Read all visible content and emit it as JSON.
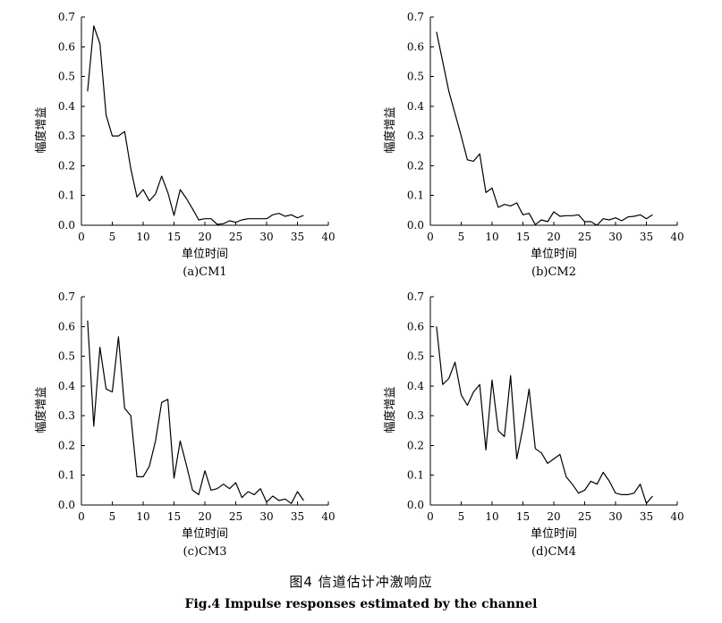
{
  "figure": {
    "caption_cn": "图4  信道估计冲激响应",
    "caption_en": "Fig.4   Impulse responses estimated by the channel"
  },
  "chart_data": [
    {
      "type": "line",
      "caption": "(a)CM1",
      "xlabel": "单位时间",
      "ylabel": "幅度增益",
      "xlim": [
        0,
        40
      ],
      "ylim": [
        0,
        0.7
      ],
      "xticks": [
        0,
        5,
        10,
        15,
        20,
        25,
        30,
        35,
        40
      ],
      "yticks": [
        0.0,
        0.1,
        0.2,
        0.3,
        0.4,
        0.5,
        0.6,
        0.7
      ],
      "grid": false,
      "x": [
        1,
        2,
        3,
        4,
        5,
        6,
        7,
        8,
        9,
        10,
        11,
        12,
        13,
        14,
        15,
        16,
        17,
        18,
        19,
        20,
        21,
        22,
        23,
        24,
        25,
        26,
        27,
        28,
        29,
        30,
        31,
        32,
        33,
        34,
        35,
        36
      ],
      "values": [
        0.45,
        0.67,
        0.61,
        0.37,
        0.3,
        0.3,
        0.315,
        0.19,
        0.095,
        0.12,
        0.082,
        0.105,
        0.165,
        0.11,
        0.033,
        0.12,
        0.09,
        0.055,
        0.018,
        0.022,
        0.022,
        0.003,
        0.005,
        0.015,
        0.01,
        0.018,
        0.022,
        0.022,
        0.022,
        0.022,
        0.035,
        0.04,
        0.03,
        0.035,
        0.025,
        0.033
      ]
    },
    {
      "type": "line",
      "caption": "(b)CM2",
      "xlabel": "单位时间",
      "ylabel": "幅度增益",
      "xlim": [
        0,
        40
      ],
      "ylim": [
        0,
        0.7
      ],
      "xticks": [
        0,
        5,
        10,
        15,
        20,
        25,
        30,
        35,
        40
      ],
      "yticks": [
        0.0,
        0.1,
        0.2,
        0.3,
        0.4,
        0.5,
        0.6,
        0.7
      ],
      "grid": false,
      "x": [
        1,
        2,
        3,
        4,
        5,
        6,
        7,
        8,
        9,
        10,
        11,
        12,
        13,
        14,
        15,
        16,
        17,
        18,
        19,
        20,
        21,
        22,
        23,
        24,
        25,
        26,
        27,
        28,
        29,
        30,
        31,
        32,
        33,
        34,
        35,
        36
      ],
      "values": [
        0.65,
        0.55,
        0.45,
        0.375,
        0.3,
        0.22,
        0.215,
        0.24,
        0.11,
        0.125,
        0.06,
        0.07,
        0.065,
        0.075,
        0.035,
        0.04,
        0.002,
        0.018,
        0.012,
        0.045,
        0.03,
        0.032,
        0.032,
        0.035,
        0.012,
        0.012,
        0.0,
        0.022,
        0.018,
        0.025,
        0.015,
        0.028,
        0.03,
        0.035,
        0.022,
        0.035
      ]
    },
    {
      "type": "line",
      "caption": "(c)CM3",
      "xlabel": "单位时间",
      "ylabel": "幅度增益",
      "xlim": [
        0,
        40
      ],
      "ylim": [
        0,
        0.7
      ],
      "xticks": [
        0,
        5,
        10,
        15,
        20,
        25,
        30,
        35,
        40
      ],
      "yticks": [
        0.0,
        0.1,
        0.2,
        0.3,
        0.4,
        0.5,
        0.6,
        0.7
      ],
      "grid": false,
      "x": [
        1,
        2,
        3,
        4,
        5,
        6,
        7,
        8,
        9,
        10,
        11,
        12,
        13,
        14,
        15,
        16,
        17,
        18,
        19,
        20,
        21,
        22,
        23,
        24,
        25,
        26,
        27,
        28,
        29,
        30,
        31,
        32,
        33,
        34,
        35,
        36
      ],
      "values": [
        0.62,
        0.265,
        0.53,
        0.39,
        0.38,
        0.565,
        0.325,
        0.3,
        0.095,
        0.095,
        0.13,
        0.215,
        0.345,
        0.355,
        0.09,
        0.215,
        0.135,
        0.05,
        0.035,
        0.115,
        0.05,
        0.055,
        0.07,
        0.055,
        0.075,
        0.025,
        0.045,
        0.035,
        0.055,
        0.01,
        0.03,
        0.015,
        0.02,
        0.005,
        0.045,
        0.015
      ]
    },
    {
      "type": "line",
      "caption": "(d)CM4",
      "xlabel": "单位时间",
      "ylabel": "幅度增益",
      "xlim": [
        0,
        40
      ],
      "ylim": [
        0,
        0.7
      ],
      "xticks": [
        0,
        5,
        10,
        15,
        20,
        25,
        30,
        35,
        40
      ],
      "yticks": [
        0.0,
        0.1,
        0.2,
        0.3,
        0.4,
        0.5,
        0.6,
        0.7
      ],
      "grid": false,
      "x": [
        1,
        2,
        3,
        4,
        5,
        6,
        7,
        8,
        9,
        10,
        11,
        12,
        13,
        14,
        15,
        16,
        17,
        18,
        19,
        20,
        21,
        22,
        23,
        24,
        25,
        26,
        27,
        28,
        29,
        30,
        31,
        32,
        33,
        34,
        35,
        36
      ],
      "values": [
        0.6,
        0.405,
        0.425,
        0.48,
        0.37,
        0.335,
        0.38,
        0.405,
        0.185,
        0.42,
        0.25,
        0.23,
        0.435,
        0.155,
        0.26,
        0.39,
        0.19,
        0.175,
        0.14,
        0.155,
        0.17,
        0.095,
        0.07,
        0.04,
        0.05,
        0.08,
        0.07,
        0.11,
        0.08,
        0.04,
        0.035,
        0.035,
        0.04,
        0.07,
        0.005,
        0.03
      ]
    }
  ]
}
